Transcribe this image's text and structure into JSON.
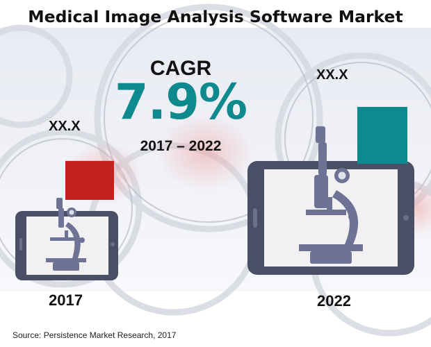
{
  "header": {
    "title": "Medical Image Analysis Software Market"
  },
  "cagr": {
    "label": "CAGR",
    "value": "7.9%",
    "period": "2017 – 2022"
  },
  "source": "Source: Persistence Market Research, 2017",
  "colors": {
    "bar_2017": "#c4211e",
    "bar_2022": "#0e8a8e",
    "cagr_text": "#0e8a8e",
    "tablet_frame": "#4a4f66",
    "microscope": "#6e7396"
  },
  "chart_data": {
    "type": "bar",
    "title": "Medical Image Analysis Software Market",
    "categories": [
      "2017",
      "2022"
    ],
    "value_labels": [
      "XX.X",
      "XX.X"
    ],
    "values": [
      1.0,
      1.46
    ],
    "annotations": [
      "CAGR",
      "7.9%",
      "2017 – 2022"
    ]
  }
}
